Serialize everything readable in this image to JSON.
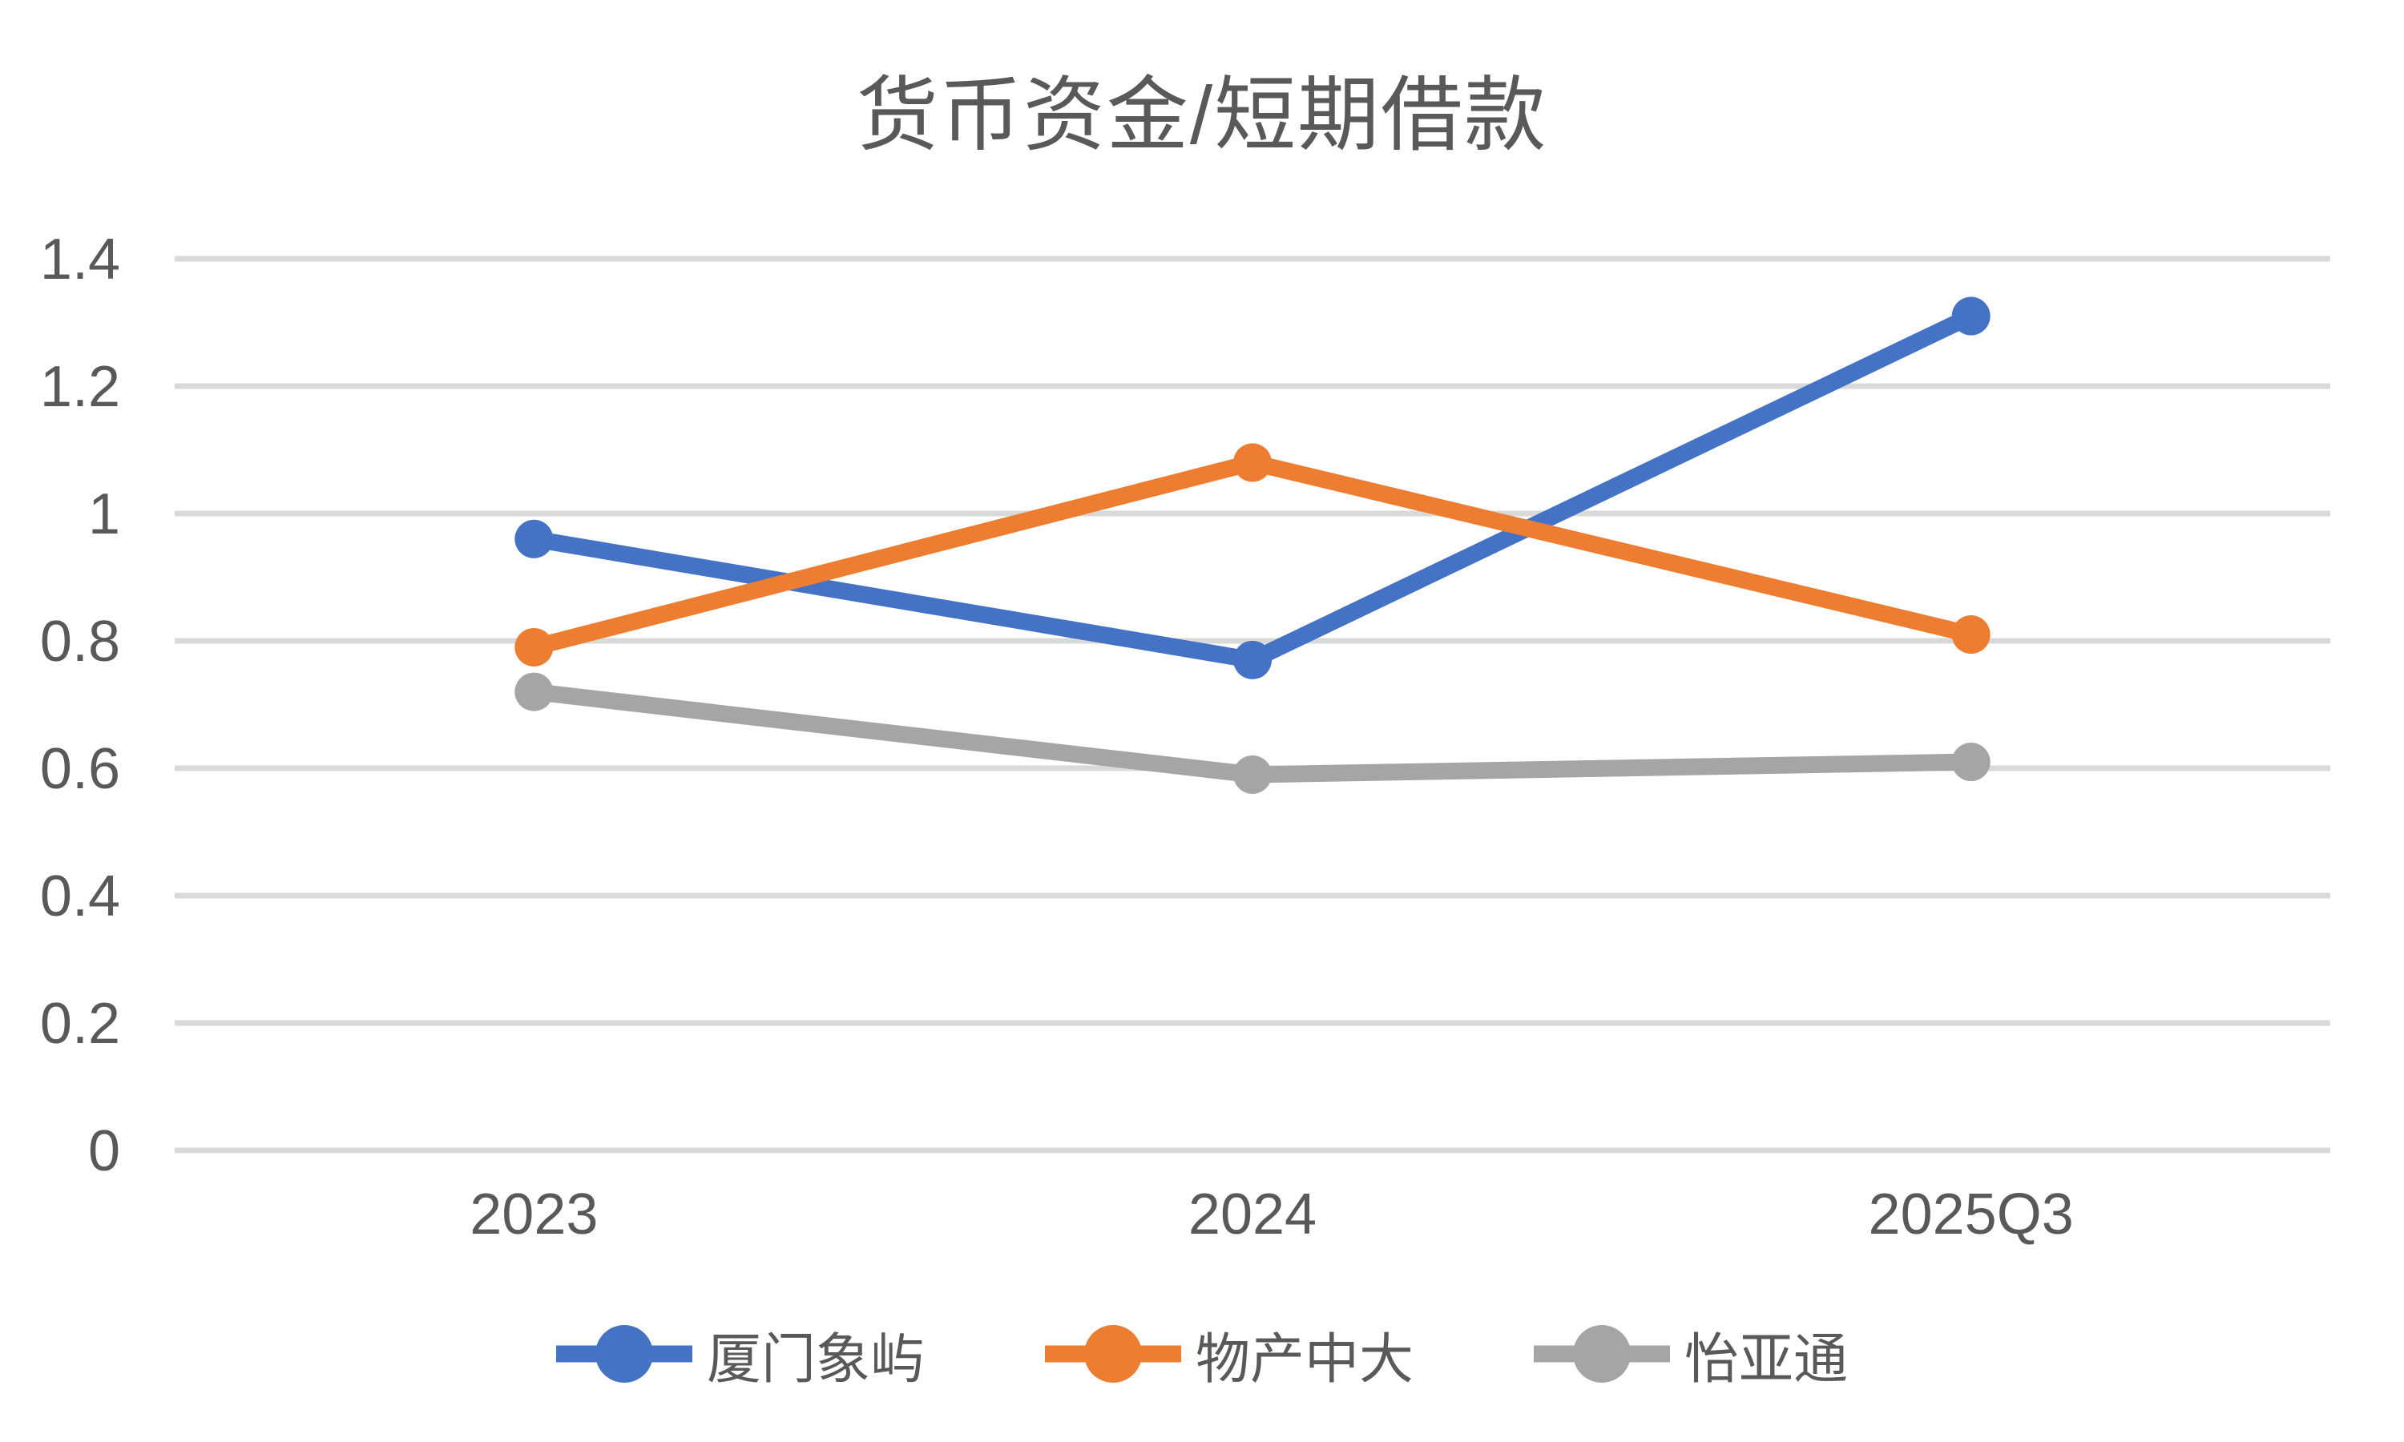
{
  "chart_data": {
    "type": "line",
    "title": "货币资金/短期借款",
    "categories": [
      "2023",
      "2024",
      "2025Q3"
    ],
    "series": [
      {
        "name": "厦门象屿",
        "values": [
          0.96,
          0.77,
          1.31
        ],
        "color": "#4472C4"
      },
      {
        "name": "物产中大",
        "values": [
          0.79,
          1.08,
          0.81
        ],
        "color": "#ED7D31"
      },
      {
        "name": "怡亚通",
        "values": [
          0.72,
          0.59,
          0.61
        ],
        "color": "#A5A5A5"
      }
    ],
    "ylim": [
      0,
      1.4
    ],
    "yticks": [
      {
        "value": 0,
        "label": "0"
      },
      {
        "value": 0.2,
        "label": "0.2"
      },
      {
        "value": 0.4,
        "label": "0.4"
      },
      {
        "value": 0.6,
        "label": "0.6"
      },
      {
        "value": 0.8,
        "label": "0.8"
      },
      {
        "value": 1,
        "label": "1"
      },
      {
        "value": 1.2,
        "label": "1.2"
      },
      {
        "value": 1.4,
        "label": "1.4"
      }
    ],
    "grid": "horizontal",
    "legend_position": "bottom",
    "colors": {
      "gridline": "#D9D9D9",
      "text": "#595959",
      "background": "#FFFFFF"
    }
  }
}
